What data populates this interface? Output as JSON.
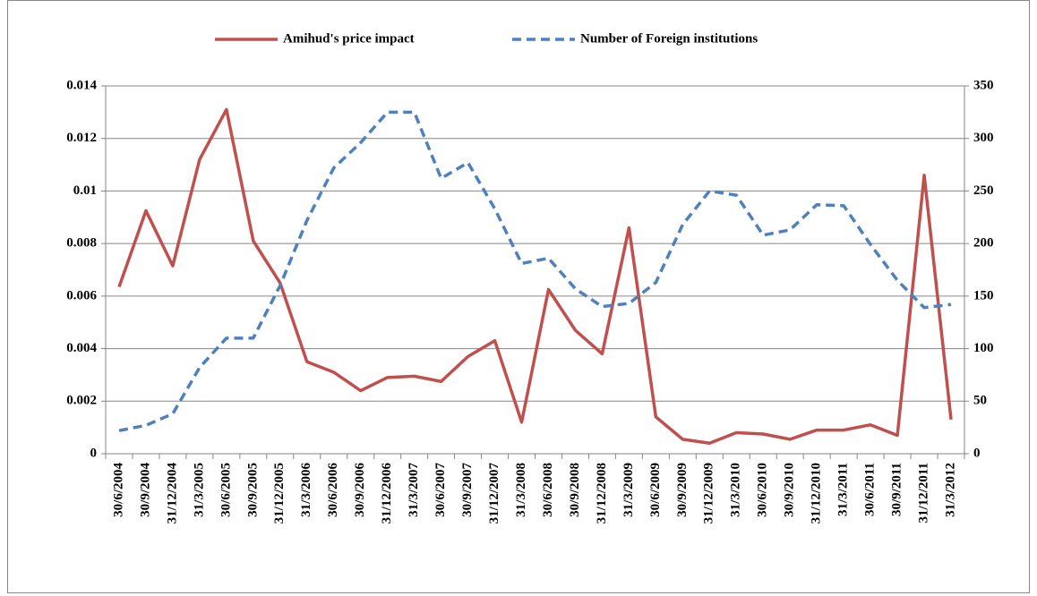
{
  "chart_data": {
    "type": "line",
    "categories": [
      "30/6/2004",
      "30/9/2004",
      "31/12/2004",
      "31/3/2005",
      "30/6/2005",
      "30/9/2005",
      "31/12/2005",
      "31/3/2006",
      "30/6/2006",
      "30/9/2006",
      "31/12/2006",
      "31/3/2007",
      "30/6/2007",
      "30/9/2007",
      "31/12/2007",
      "31/3/2008",
      "30/6/2008",
      "30/9/2008",
      "31/12/2008",
      "31/3/2009",
      "30/6/2009",
      "30/9/2009",
      "31/12/2009",
      "31/3/2010",
      "30/6/2010",
      "30/9/2010",
      "31/12/2010",
      "31/3/2011",
      "30/6/2011",
      "30/9/2011",
      "31/12/2011",
      "31/3/2012"
    ],
    "series": [
      {
        "name": "Amihud's price impact",
        "color": "#c0504d",
        "dash": false,
        "values": [
          0.00635,
          0.00925,
          0.00715,
          0.0112,
          0.0131,
          0.0081,
          0.0065,
          0.0035,
          0.0031,
          0.0024,
          0.0029,
          0.00295,
          0.00275,
          0.0037,
          0.0043,
          0.0012,
          0.00625,
          0.0047,
          0.0038,
          0.0086,
          0.0014,
          0.00055,
          0.0004,
          0.0008,
          0.00075,
          0.00055,
          0.0009,
          0.0009,
          0.0011,
          0.0007,
          0.0106,
          0.0013
        ]
      },
      {
        "name": "Number of Foreign institutions",
        "color": "#4f81bd",
        "dash": true,
        "axis": "y2",
        "values": [
          22,
          27,
          38,
          82,
          110,
          110,
          160,
          222,
          272,
          296,
          325,
          325,
          262,
          277,
          233,
          181,
          186,
          157,
          140,
          143,
          163,
          218,
          250,
          246,
          208,
          213,
          237,
          236,
          199,
          165,
          139,
          142
        ]
      }
    ],
    "ylim": [
      0,
      0.014
    ],
    "yticks": [
      0,
      0.002,
      0.004,
      0.006,
      0.008,
      0.01,
      0.012,
      0.014
    ],
    "y2lim": [
      0,
      350
    ],
    "y2ticks": [
      0,
      50,
      100,
      150,
      200,
      250,
      300,
      350
    ],
    "grid": true,
    "legend": "top"
  }
}
